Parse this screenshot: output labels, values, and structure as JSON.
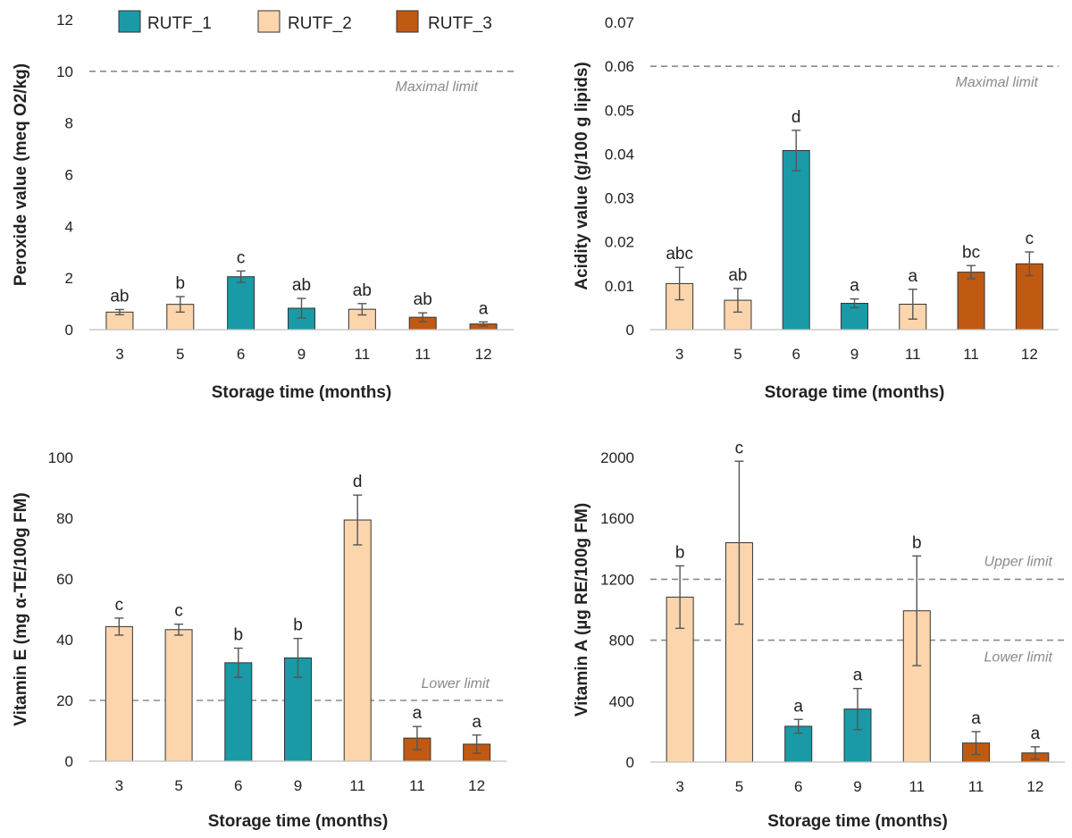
{
  "colors": {
    "RUTF_1": "#1a9aa6",
    "RUTF_2": "#fcd5ac",
    "RUTF_3": "#c05a12",
    "limit": "#8a8a8a",
    "axis": "#bfbfbf"
  },
  "legend": {
    "items": [
      "RUTF_1",
      "RUTF_2",
      "RUTF_3"
    ]
  },
  "chart_data": [
    {
      "type": "bar",
      "id": "peroxide",
      "ylabel": "Peroxide value (meq O2/kg)",
      "xlabel": "Storage time (months)",
      "ylim": [
        0,
        12
      ],
      "yticks": [
        "0",
        "2",
        "4",
        "6",
        "8",
        "10",
        "12"
      ],
      "categories": [
        "3",
        "5",
        "6",
        "9",
        "11",
        "11",
        "12"
      ],
      "groups": [
        "RUTF_2",
        "RUTF_2",
        "RUTF_1",
        "RUTF_1",
        "RUTF_2",
        "RUTF_3",
        "RUTF_3"
      ],
      "values": [
        0.68,
        0.98,
        2.05,
        0.83,
        0.79,
        0.48,
        0.22
      ],
      "errors": [
        0.1,
        0.3,
        0.22,
        0.38,
        0.22,
        0.17,
        0.08
      ],
      "labels": [
        "ab",
        "b",
        "c",
        "ab",
        "ab",
        "ab",
        "a"
      ],
      "limits": [
        {
          "value": 10,
          "label": "Maximal limit"
        }
      ]
    },
    {
      "type": "bar",
      "id": "acidity",
      "ylabel": "Acidity value (g/100 g lipids)",
      "xlabel": "Storage time (months)",
      "ylim": [
        0,
        0.07
      ],
      "yticks": [
        "0",
        "0.01",
        "0.02",
        "0.03",
        "0.04",
        "0.05",
        "0.06",
        "0.07"
      ],
      "categories": [
        "3",
        "5",
        "6",
        "9",
        "11",
        "11",
        "12"
      ],
      "groups": [
        "RUTF_2",
        "RUTF_2",
        "RUTF_1",
        "RUTF_1",
        "RUTF_2",
        "RUTF_3",
        "RUTF_3"
      ],
      "values": [
        0.0105,
        0.0067,
        0.0408,
        0.006,
        0.0058,
        0.0131,
        0.015
      ],
      "errors": [
        0.0037,
        0.0027,
        0.0046,
        0.001,
        0.0034,
        0.0015,
        0.0027
      ],
      "labels": [
        "abc",
        "ab",
        "d",
        "a",
        "a",
        "bc",
        "c"
      ],
      "limits": [
        {
          "value": 0.06,
          "label": "Maximal limit"
        }
      ]
    },
    {
      "type": "bar",
      "id": "vitamin-e",
      "ylabel": "Vitamin E (mg α-TE/100g FM)",
      "xlabel": "Storage time (months)",
      "ylim": [
        0,
        100
      ],
      "yticks": [
        "0",
        "20",
        "40",
        "60",
        "80",
        "100"
      ],
      "categories": [
        "3",
        "5",
        "6",
        "9",
        "11",
        "11",
        "12"
      ],
      "groups": [
        "RUTF_2",
        "RUTF_2",
        "RUTF_1",
        "RUTF_1",
        "RUTF_2",
        "RUTF_3",
        "RUTF_3"
      ],
      "values": [
        44.3,
        43.3,
        32.4,
        34.0,
        79.4,
        7.6,
        5.6
      ],
      "errors": [
        2.8,
        1.8,
        4.8,
        6.4,
        8.2,
        3.8,
        3.0
      ],
      "labels": [
        "c",
        "c",
        "b",
        "b",
        "d",
        "a",
        "a"
      ],
      "limits": [
        {
          "value": 20,
          "label": "Lower limit"
        }
      ]
    },
    {
      "type": "bar",
      "id": "vitamin-a",
      "ylabel": "Vitamin A (µg RE/100g FM)",
      "xlabel": "Storage time (months)",
      "ylim": [
        0,
        2000
      ],
      "yticks": [
        "0",
        "400",
        "800",
        "1200",
        "1600",
        "2000"
      ],
      "categories": [
        "3",
        "5",
        "6",
        "9",
        "11",
        "11",
        "12"
      ],
      "groups": [
        "RUTF_2",
        "RUTF_2",
        "RUTF_1",
        "RUTF_1",
        "RUTF_2",
        "RUTF_3",
        "RUTF_3"
      ],
      "values": [
        1083,
        1440,
        235,
        348,
        993,
        125,
        60
      ],
      "errors": [
        205,
        535,
        45,
        135,
        360,
        75,
        40
      ],
      "labels": [
        "b",
        "c",
        "a",
        "a",
        "b",
        "a",
        "a"
      ],
      "limits": [
        {
          "value": 1200,
          "label": "Upper limit"
        },
        {
          "value": 800,
          "label": "Lower limit"
        }
      ]
    }
  ]
}
